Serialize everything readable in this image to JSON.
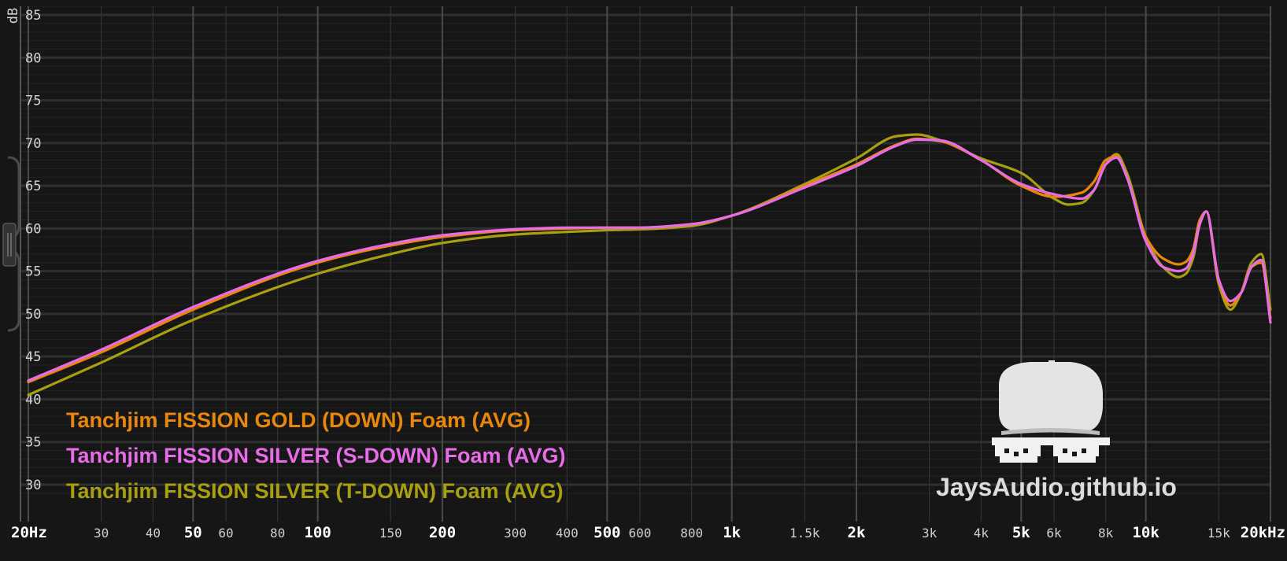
{
  "chart_data": {
    "type": "line",
    "ylabel": "dB",
    "xscale": "log",
    "xlim": [
      20,
      20000
    ],
    "ylim": [
      28,
      87
    ],
    "grid": true,
    "yticks": [
      85,
      80,
      75,
      70,
      65,
      60,
      55,
      50,
      45,
      40,
      35,
      30
    ],
    "xticks": [
      {
        "value": 20,
        "label": "20Hz",
        "major": true
      },
      {
        "value": 30,
        "label": "30",
        "major": false
      },
      {
        "value": 40,
        "label": "40",
        "major": false
      },
      {
        "value": 50,
        "label": "50",
        "major": true
      },
      {
        "value": 60,
        "label": "60",
        "major": false
      },
      {
        "value": 80,
        "label": "80",
        "major": false
      },
      {
        "value": 100,
        "label": "100",
        "major": true
      },
      {
        "value": 150,
        "label": "150",
        "major": false
      },
      {
        "value": 200,
        "label": "200",
        "major": true
      },
      {
        "value": 300,
        "label": "300",
        "major": false
      },
      {
        "value": 400,
        "label": "400",
        "major": false
      },
      {
        "value": 500,
        "label": "500",
        "major": true
      },
      {
        "value": 600,
        "label": "600",
        "major": false
      },
      {
        "value": 800,
        "label": "800",
        "major": false
      },
      {
        "value": 1000,
        "label": "1k",
        "major": true
      },
      {
        "value": 1500,
        "label": "1.5k",
        "major": false
      },
      {
        "value": 2000,
        "label": "2k",
        "major": true
      },
      {
        "value": 3000,
        "label": "3k",
        "major": false
      },
      {
        "value": 4000,
        "label": "4k",
        "major": false
      },
      {
        "value": 5000,
        "label": "5k",
        "major": true
      },
      {
        "value": 6000,
        "label": "6k",
        "major": false
      },
      {
        "value": 8000,
        "label": "8k",
        "major": false
      },
      {
        "value": 10000,
        "label": "10k",
        "major": true
      },
      {
        "value": 15000,
        "label": "15k",
        "major": false
      },
      {
        "value": 20000,
        "label": "20kHz",
        "major": true
      }
    ],
    "legend_position": "bottom-left",
    "series": [
      {
        "name": "Tanchjim FISSION GOLD (DOWN) Foam (AVG)",
        "color": "#e8860e",
        "x": [
          20,
          30,
          50,
          100,
          150,
          200,
          300,
          400,
          500,
          600,
          800,
          1000,
          1500,
          2000,
          2500,
          2800,
          3200,
          4000,
          5000,
          6000,
          7000,
          7500,
          8000,
          8500,
          9000,
          10000,
          11000,
          12000,
          12500,
          13000,
          13500,
          14000,
          15000,
          16000,
          17000,
          18000,
          19000,
          20000
        ],
        "y": [
          42,
          45.5,
          50.5,
          56,
          58,
          59,
          59.8,
          60,
          60.1,
          60.1,
          60.5,
          61.5,
          65,
          67.5,
          69.8,
          70.5,
          70.2,
          68,
          65,
          63.7,
          64.2,
          65.5,
          68,
          68.5,
          66,
          59,
          56.5,
          55.8,
          56.1,
          57.5,
          61,
          62,
          54,
          51,
          52.5,
          55.5,
          56,
          49.5
        ]
      },
      {
        "name": "Tanchjim FISSION SILVER (S-DOWN) Foam (AVG)",
        "color": "#e86ce8",
        "x": [
          20,
          30,
          50,
          100,
          150,
          200,
          300,
          400,
          500,
          600,
          800,
          1000,
          1500,
          2000,
          2500,
          2800,
          3200,
          4000,
          5000,
          6000,
          7000,
          7500,
          8000,
          8500,
          9000,
          10000,
          11000,
          12000,
          12500,
          13000,
          13500,
          14000,
          15000,
          16000,
          17000,
          18000,
          19000,
          20000
        ],
        "y": [
          42.2,
          45.8,
          50.8,
          56.2,
          58.2,
          59.2,
          59.9,
          60.1,
          60.1,
          60.1,
          60.5,
          61.5,
          64.8,
          67.3,
          69.7,
          70.4,
          70.3,
          68,
          65.2,
          64,
          63.5,
          64.5,
          67.5,
          68.3,
          66,
          58.5,
          55.5,
          55,
          55.3,
          57,
          60.5,
          62,
          54,
          51.5,
          52.5,
          55.5,
          56.3,
          49
        ]
      },
      {
        "name": "Tanchjim FISSION SILVER (T-DOWN) Foam (AVG)",
        "color": "#a8a010",
        "x": [
          20,
          30,
          50,
          100,
          150,
          200,
          300,
          400,
          500,
          600,
          800,
          1000,
          1500,
          2000,
          2500,
          2800,
          3200,
          4000,
          5000,
          6000,
          6500,
          7000,
          7500,
          8000,
          8500,
          9000,
          10000,
          11000,
          12000,
          12500,
          13000,
          13500,
          14000,
          15000,
          16000,
          17000,
          18000,
          19000,
          20000
        ],
        "y": [
          40.5,
          44.3,
          49.3,
          54.7,
          57,
          58.3,
          59.3,
          59.6,
          59.8,
          59.9,
          60.3,
          61.5,
          65.2,
          68.2,
          70.8,
          71,
          70.3,
          68.2,
          66.5,
          63.5,
          62.8,
          63,
          64.5,
          67.5,
          68.7,
          66.5,
          59,
          55.5,
          54.3,
          54.7,
          56.5,
          60.5,
          62,
          53.5,
          50.5,
          52.5,
          56,
          57,
          50.5
        ]
      }
    ]
  },
  "watermark": {
    "text": "JaysAudio.github.io",
    "icon": "cap-and-pixel-sunglasses-logo"
  }
}
